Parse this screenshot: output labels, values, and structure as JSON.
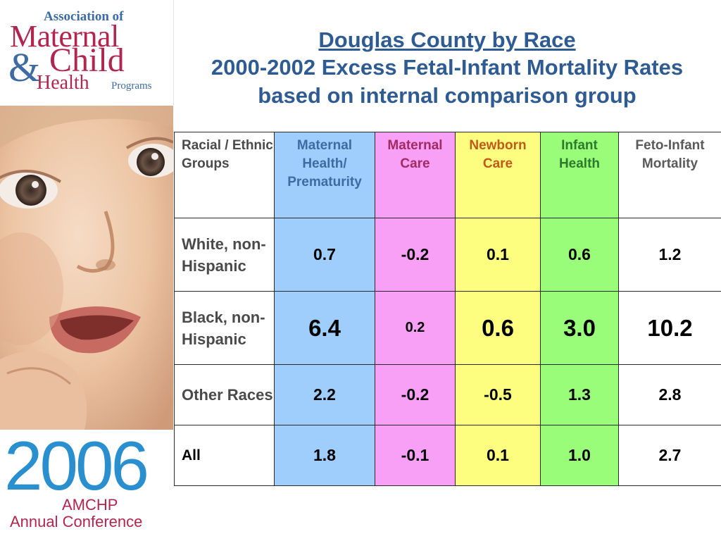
{
  "logo": {
    "assoc": "Association of",
    "maternal": "Maternal",
    "amp": "&",
    "child": "Child",
    "health": "Health",
    "programs": "Programs"
  },
  "conference": {
    "year": "2006",
    "amchp": "AMCHP",
    "annual": "Annual Conference"
  },
  "title": {
    "main": "Douglas County by Race",
    "line2": "2000-2002 Excess Fetal-Infant Mortality Rates",
    "line3": "based on internal comparison group"
  },
  "colors": {
    "maternal_health": "#9fcdfc",
    "maternal_care": "#f7a0f6",
    "newborn_care": "#fdfe7f",
    "infant_health": "#99fd79",
    "feto_infant": "#ffffff",
    "title": "#2f5b93"
  },
  "chart_data": {
    "type": "table",
    "title": "Douglas County by Race",
    "subtitle": "2000-2002 Excess Fetal-Infant Mortality Rates based on internal comparison group",
    "columns": [
      "Racial / Ethnic Groups",
      "Maternal Health/ Prematurity",
      "Maternal Care",
      "Newborn Care",
      "Infant Health",
      "Feto-Infant Mortality"
    ],
    "rows": [
      {
        "group": "White, non-Hispanic",
        "maternal_health": "0.7",
        "maternal_care": "-0.2",
        "newborn_care": "0.1",
        "infant_health": "0.6",
        "feto_infant": "1.2"
      },
      {
        "group": "Black, non-Hispanic",
        "maternal_health": "6.4",
        "maternal_care": "0.2",
        "newborn_care": "0.6",
        "infant_health": "3.0",
        "feto_infant": "10.2"
      },
      {
        "group": "Other Races",
        "maternal_health": "2.2",
        "maternal_care": "-0.2",
        "newborn_care": "-0.5",
        "infant_health": "1.3",
        "feto_infant": "2.8"
      },
      {
        "group": "All",
        "maternal_health": "1.8",
        "maternal_care": "-0.1",
        "newborn_care": "0.1",
        "infant_health": "1.0",
        "feto_infant": "2.7"
      }
    ]
  }
}
